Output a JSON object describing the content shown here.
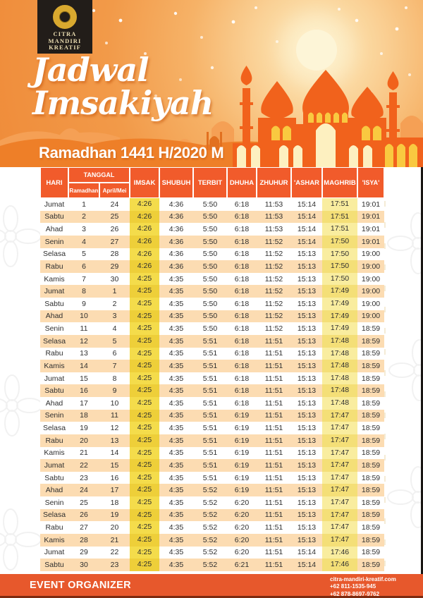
{
  "logo": {
    "line1": "CITRA",
    "line2": "MANDIRI",
    "line3": "KREATIF"
  },
  "title": {
    "line1": "Jadwal",
    "line2": "Imsakiyah"
  },
  "banner": {
    "text": "Ramadhan 1441 H/2020 M"
  },
  "table": {
    "hari_label": "HARI",
    "tanggal_label": "TANGGAL",
    "sub_ramadhan": "Ramadhan",
    "sub_april_mei": "April/Mei",
    "cols": [
      "IMSAK",
      "SHUBUH",
      "TERBIT",
      "DHUHA",
      "ZHUHUR",
      "'ASHAR",
      "MAGHRIB",
      "'ISYA'"
    ],
    "rows": [
      [
        "Jumat",
        "1",
        "24",
        "4:26",
        "4:36",
        "5:50",
        "6:18",
        "11:53",
        "15:14",
        "17:51",
        "19:01"
      ],
      [
        "Sabtu",
        "2",
        "25",
        "4:26",
        "4:36",
        "5:50",
        "6:18",
        "11:53",
        "15:14",
        "17:51",
        "19:01"
      ],
      [
        "Ahad",
        "3",
        "26",
        "4:26",
        "4:36",
        "5:50",
        "6:18",
        "11:53",
        "15:14",
        "17:51",
        "19:01"
      ],
      [
        "Senin",
        "4",
        "27",
        "4:26",
        "4:36",
        "5:50",
        "6:18",
        "11:52",
        "15:14",
        "17:50",
        "19:01"
      ],
      [
        "Selasa",
        "5",
        "28",
        "4:26",
        "4:36",
        "5:50",
        "6:18",
        "11:52",
        "15:13",
        "17:50",
        "19:00"
      ],
      [
        "Rabu",
        "6",
        "29",
        "4:26",
        "4:36",
        "5:50",
        "6:18",
        "11:52",
        "15:13",
        "17:50",
        "19:00"
      ],
      [
        "Kamis",
        "7",
        "30",
        "4:25",
        "4:35",
        "5:50",
        "6:18",
        "11:52",
        "15:13",
        "17:50",
        "19:00"
      ],
      [
        "Jumat",
        "8",
        "1",
        "4:25",
        "4:35",
        "5:50",
        "6:18",
        "11:52",
        "15:13",
        "17:49",
        "19:00"
      ],
      [
        "Sabtu",
        "9",
        "2",
        "4:25",
        "4:35",
        "5:50",
        "6:18",
        "11:52",
        "15:13",
        "17:49",
        "19:00"
      ],
      [
        "Ahad",
        "10",
        "3",
        "4:25",
        "4:35",
        "5:50",
        "6:18",
        "11:52",
        "15:13",
        "17:49",
        "19:00"
      ],
      [
        "Senin",
        "11",
        "4",
        "4:25",
        "4:35",
        "5:50",
        "6:18",
        "11:52",
        "15:13",
        "17:49",
        "18:59"
      ],
      [
        "Selasa",
        "12",
        "5",
        "4:25",
        "4:35",
        "5:51",
        "6:18",
        "11:51",
        "15:13",
        "17:48",
        "18:59"
      ],
      [
        "Rabu",
        "13",
        "6",
        "4:25",
        "4:35",
        "5:51",
        "6:18",
        "11:51",
        "15:13",
        "17:48",
        "18:59"
      ],
      [
        "Kamis",
        "14",
        "7",
        "4:25",
        "4:35",
        "5:51",
        "6:18",
        "11:51",
        "15:13",
        "17:48",
        "18:59"
      ],
      [
        "Jumat",
        "15",
        "8",
        "4:25",
        "4:35",
        "5:51",
        "6:18",
        "11:51",
        "15:13",
        "17:48",
        "18:59"
      ],
      [
        "Sabtu",
        "16",
        "9",
        "4:25",
        "4:35",
        "5:51",
        "6:18",
        "11:51",
        "15:13",
        "17:48",
        "18:59"
      ],
      [
        "Ahad",
        "17",
        "10",
        "4:25",
        "4:35",
        "5:51",
        "6:18",
        "11:51",
        "15:13",
        "17:48",
        "18:59"
      ],
      [
        "Senin",
        "18",
        "11",
        "4:25",
        "4:35",
        "5:51",
        "6:19",
        "11:51",
        "15:13",
        "17:47",
        "18:59"
      ],
      [
        "Selasa",
        "19",
        "12",
        "4:25",
        "4:35",
        "5:51",
        "6:19",
        "11:51",
        "15:13",
        "17:47",
        "18:59"
      ],
      [
        "Rabu",
        "20",
        "13",
        "4:25",
        "4:35",
        "5:51",
        "6:19",
        "11:51",
        "15:13",
        "17:47",
        "18:59"
      ],
      [
        "Kamis",
        "21",
        "14",
        "4:25",
        "4:35",
        "5:51",
        "6:19",
        "11:51",
        "15:13",
        "17:47",
        "18:59"
      ],
      [
        "Jumat",
        "22",
        "15",
        "4:25",
        "4:35",
        "5:51",
        "6:19",
        "11:51",
        "15:13",
        "17:47",
        "18:59"
      ],
      [
        "Sabtu",
        "23",
        "16",
        "4:25",
        "4:35",
        "5:51",
        "6:19",
        "11:51",
        "15:13",
        "17:47",
        "18:59"
      ],
      [
        "Ahad",
        "24",
        "17",
        "4:25",
        "4:35",
        "5:52",
        "6:19",
        "11:51",
        "15:13",
        "17:47",
        "18:59"
      ],
      [
        "Senin",
        "25",
        "18",
        "4:25",
        "4:35",
        "5:52",
        "6:20",
        "11:51",
        "15:13",
        "17:47",
        "18:59"
      ],
      [
        "Selasa",
        "26",
        "19",
        "4:25",
        "4:35",
        "5:52",
        "6:20",
        "11:51",
        "15:13",
        "17:47",
        "18:59"
      ],
      [
        "Rabu",
        "27",
        "20",
        "4:25",
        "4:35",
        "5:52",
        "6:20",
        "11:51",
        "15:13",
        "17:47",
        "18:59"
      ],
      [
        "Kamis",
        "28",
        "21",
        "4:25",
        "4:35",
        "5:52",
        "6:20",
        "11:51",
        "15:13",
        "17:47",
        "18:59"
      ],
      [
        "Jumat",
        "29",
        "22",
        "4:25",
        "4:35",
        "5:52",
        "6:20",
        "11:51",
        "15:14",
        "17:46",
        "18:59"
      ],
      [
        "Sabtu",
        "30",
        "23",
        "4:25",
        "4:35",
        "5:52",
        "6:21",
        "11:51",
        "15:14",
        "17:46",
        "18:59"
      ]
    ]
  },
  "footer": {
    "left": "EVENT ORGANIZER",
    "site": "citra-mandiri-kreatif.com",
    "phone1": "+62 811-1535-945",
    "phone2": "+62 878-8697-9762"
  },
  "colors": {
    "header_orange": "#f29a49",
    "mosque_orange": "#f1621c",
    "table_header": "#f15b2b",
    "row_peach": "#fcdcb2",
    "imsak_yellow": "#f4dc4b",
    "maghrib_yellow": "#f9ed9f",
    "footer_orange": "#e7582c",
    "logo_gold": "#d9a92f"
  }
}
